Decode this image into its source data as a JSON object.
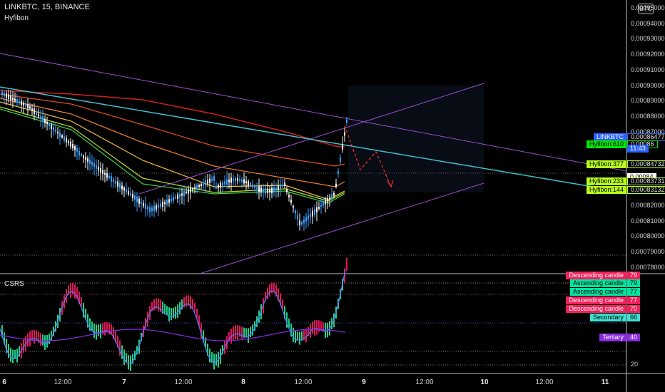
{
  "header": {
    "symbol_line": "LINKBTC, 15, BINANCE",
    "indicator": "Hyfibon",
    "sub_indicator": "CSRS"
  },
  "currency_button": "BTC",
  "price_axis": [
    "0.00095000",
    "0.00094000",
    "0.00093000",
    "0.00092000",
    "0.00091000",
    "0.00090000",
    "0.00089000",
    "0.00088000",
    "0.00087000",
    "0.00082000",
    "0.00081000",
    "0.00080000",
    "0.00079000",
    "0.00078000"
  ],
  "price_tags": [
    {
      "label": "LINKBTC",
      "value": "0.00086477",
      "bg": "#2962ff",
      "fg": "#ffffff"
    },
    {
      "label": "Hyfibon:610",
      "value": "0.00086",
      "bg": "#00e600",
      "fg": "#000000"
    },
    {
      "label": "",
      "value": "11:43",
      "bg": "#2962ff",
      "fg": "#ffffff"
    },
    {
      "label": "Hyfibon:377",
      "value": "0.00084732",
      "bg": "#b7ff1a",
      "fg": "#000000"
    },
    {
      "label": "",
      "value": "0.00084",
      "bg": "#ffffff",
      "fg": "#000000"
    },
    {
      "label": "Hyfibon:233",
      "value": "0.00083731",
      "bg": "#b7ff1a",
      "fg": "#000000"
    },
    {
      "label": "Hyfibon:144",
      "value": "0.00083132",
      "bg": "#b7ff1a",
      "fg": "#000000"
    }
  ],
  "csrs_axis": [
    "20"
  ],
  "csrs_tags": [
    {
      "label": "Descending candle",
      "value": "79",
      "bg": "#f0205a",
      "fg": "#ffffff"
    },
    {
      "label": "Ascending candle",
      "value": "79",
      "bg": "#00e5a0",
      "fg": "#000000"
    },
    {
      "label": "Ascending candle",
      "value": "77",
      "bg": "#00e5a0",
      "fg": "#000000"
    },
    {
      "label": "Descending candle",
      "value": "77",
      "bg": "#f0205a",
      "fg": "#ffffff"
    },
    {
      "label": "Descending candle",
      "value": "70",
      "bg": "#f0205a",
      "fg": "#ffffff"
    },
    {
      "label": "Secondary",
      "value": "66",
      "bg": "#40e0d0",
      "fg": "#000000"
    },
    {
      "label": "Tertiary",
      "value": "40",
      "bg": "#8a2be2",
      "fg": "#ffffff"
    }
  ],
  "time_axis": [
    "6",
    "12:00",
    "7",
    "12:00",
    "8",
    "12:00",
    "9",
    "12:00",
    "10",
    "12:00",
    "11"
  ],
  "colors": {
    "trendline": "#40c0d0",
    "channel": "#9a4fd0",
    "forecast": "#ff3030",
    "bull": "#3aa0ff",
    "bear": "#ffffff"
  }
}
